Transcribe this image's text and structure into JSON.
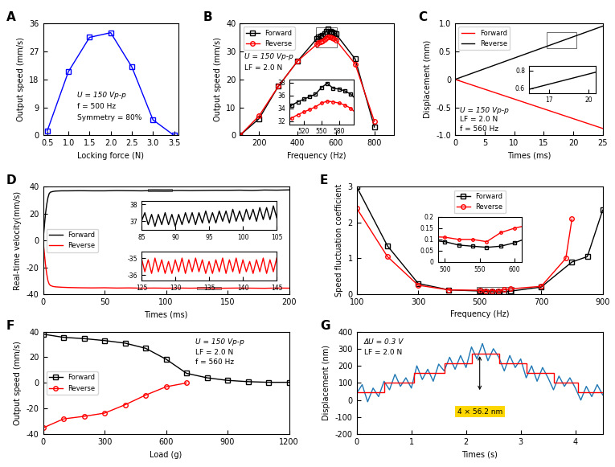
{
  "chart_data": [
    {
      "type": "line",
      "title": "A",
      "x_label": "Locking force (N)",
      "y_label": "Output speed (mm/s)",
      "xlim": [
        0.4,
        3.6
      ],
      "ylim": [
        0,
        36
      ],
      "xticks": [
        0.5,
        {
          "value": 1,
          "label": "1.0"
        },
        1.5,
        {
          "value": 2,
          "label": "2.0"
        },
        2.5,
        {
          "value": 3,
          "label": "3.0"
        },
        3.5
      ],
      "yticks": [
        0,
        9,
        18,
        27,
        36
      ],
      "annotations": [
        "U = 150 Vp-p",
        "f = 500 Hz",
        "Symmetry = 80%"
      ],
      "series": [
        {
          "color": "#0000ff",
          "marker": "square",
          "line_style": "solid",
          "x": [
            0.5,
            1.0,
            1.5,
            2.0,
            2.5,
            3.0,
            3.5
          ],
          "values": [
            1.5,
            20.5,
            31.5,
            33,
            22,
            5,
            0
          ]
        }
      ]
    },
    {
      "type": "line",
      "title": "B",
      "x_label": "Frequency (Hz)",
      "y_label": "Output speed (mm/s)",
      "xlim": [
        100,
        900
      ],
      "ylim": [
        0,
        40
      ],
      "xticks": [
        200,
        400,
        600,
        800
      ],
      "yticks": [
        0,
        10,
        20,
        30,
        40
      ],
      "legend": "upper left",
      "annotations": [
        "U = 150 Vp-p",
        "LF = 2.0 N"
      ],
      "series": [
        {
          "name": "Forward",
          "color": "#000000",
          "marker": "square",
          "line_style": "solid",
          "x": [
            100,
            200,
            300,
            400,
            500,
            510,
            520,
            530,
            540,
            550,
            560,
            570,
            580,
            590,
            600,
            700,
            800
          ],
          "values": [
            0,
            6,
            17.5,
            26.5,
            34.5,
            35,
            35.4,
            35.8,
            36.2,
            37.2,
            37.9,
            37.1,
            37,
            36.7,
            36.2,
            27.3,
            3
          ]
        },
        {
          "name": "Reverse",
          "color": "#ff0000",
          "marker": "circle",
          "line_style": "solid",
          "x": [
            100,
            200,
            300,
            400,
            500,
            510,
            520,
            530,
            540,
            550,
            560,
            570,
            580,
            590,
            600,
            700,
            800
          ],
          "values": [
            0,
            7,
            17.5,
            26.5,
            32.5,
            33,
            33.4,
            33.8,
            34.2,
            34.8,
            35.1,
            35,
            34.8,
            34.5,
            34,
            25.5,
            5
          ]
        }
      ],
      "insets": [
        {
          "xlim": [
            495,
            605
          ],
          "ylim": [
            31.5,
            38.5
          ],
          "xticks": [
            520,
            550,
            580
          ],
          "yticks": [
            32,
            34,
            36,
            38
          ]
        }
      ]
    },
    {
      "type": "line",
      "title": "C",
      "x_label": "Times (ms)",
      "y_label": "Displacement (mm)",
      "xlim": [
        0,
        25
      ],
      "ylim": [
        -1,
        1
      ],
      "xticks": [
        0,
        5,
        10,
        15,
        20,
        25
      ],
      "yticks": [
        {
          "value": -1,
          "label": "-1.0"
        },
        -0.5,
        0,
        0.5,
        {
          "value": 1,
          "label": "1.0"
        }
      ],
      "legend": "upper left",
      "annotations": [
        "U = 150 Vp-p",
        "LF = 2.0 N",
        "f = 560 Hz"
      ],
      "series": [
        {
          "name": "Forward",
          "color": "#ff0000",
          "marker": "none",
          "line_style": "solid",
          "x": [
            0,
            5,
            10,
            15,
            20,
            25
          ],
          "values": [
            0,
            -0.175,
            -0.35,
            -0.525,
            -0.7,
            -0.875
          ]
        },
        {
          "name": "Reverse",
          "color": "#000000",
          "marker": "none",
          "line_style": "solid",
          "x": [
            0,
            5,
            10,
            15,
            20,
            25
          ],
          "values": [
            0,
            0.19,
            0.38,
            0.57,
            0.76,
            0.95
          ]
        }
      ],
      "insets": [
        {
          "xlim": [
            15.5,
            20.5
          ],
          "ylim": [
            0.55,
            0.85
          ],
          "xticks": [
            17,
            20
          ],
          "yticks": [
            0.6,
            0.8
          ]
        }
      ]
    },
    {
      "type": "line",
      "title": "D",
      "x_label": "Times (ms)",
      "y_label": "Real-time velocity(mm/s)",
      "xlim": [
        0,
        200
      ],
      "ylim": [
        -40,
        40
      ],
      "xticks": [
        0,
        50,
        100,
        150,
        200
      ],
      "yticks": [
        -40,
        -20,
        0,
        20,
        40
      ],
      "legend": "center left",
      "series": [
        {
          "name": "Forward",
          "color": "#000000",
          "marker": "none",
          "line_style": "solid",
          "x": [
            0,
            1,
            2,
            3,
            4,
            5,
            6,
            8,
            10,
            15,
            20,
            30,
            40,
            50,
            60,
            70,
            80,
            90,
            100,
            110,
            120,
            130,
            140,
            150,
            160,
            170,
            180,
            190,
            200
          ],
          "values": [
            0,
            10,
            20,
            27,
            32,
            35,
            36,
            36.5,
            36.8,
            37,
            37,
            37.1,
            37,
            37,
            37.2,
            37.1,
            37,
            37.2,
            37.1,
            37.3,
            37.2,
            37.3,
            37.4,
            37.4,
            37.5,
            37.3,
            37.6,
            37.5,
            37.7
          ]
        },
        {
          "name": "Reverse",
          "color": "#ff0000",
          "marker": "none",
          "line_style": "solid",
          "x": [
            0,
            1,
            2,
            3,
            4,
            5,
            6,
            8,
            10,
            15,
            20,
            30,
            40,
            50,
            60,
            70,
            80,
            90,
            100,
            110,
            120,
            130,
            140,
            150,
            160,
            170,
            180,
            190,
            200
          ],
          "values": [
            0,
            -9,
            -18,
            -25,
            -30,
            -32.5,
            -33.5,
            -34.2,
            -34.5,
            -34.8,
            -35,
            -35.2,
            -35.3,
            -35.2,
            -35.4,
            -35.3,
            -35.5,
            -35.4,
            -35.5,
            -35.4,
            -35.5,
            -35.4,
            -35.6,
            -35.5,
            -35.4,
            -35.5,
            -35.6,
            -35.4,
            -35.5
          ]
        }
      ],
      "insets": [
        {
          "xlim": [
            85,
            105
          ],
          "ylim": [
            36.5,
            38.2
          ],
          "xticks": [
            85,
            90,
            95,
            100,
            105
          ],
          "yticks": [
            37,
            38
          ],
          "series": [
            {
              "color": "#000000",
              "marker": "none",
              "line_style": "solid",
              "x": [
                85,
                85.5,
                86,
                86.5,
                87,
                87.5,
                88,
                88.5,
                89,
                89.5,
                90,
                90.5,
                91,
                91.5,
                92,
                92.5,
                93,
                93.5,
                94,
                94.5,
                95,
                95.5,
                96,
                96.5,
                97,
                97.5,
                98,
                98.5,
                99,
                99.5,
                100,
                100.5,
                101,
                101.5,
                102,
                102.5,
                103,
                103.5,
                104,
                104.5,
                105
              ],
              "values": [
                37.0,
                37.5,
                36.8,
                37.4,
                36.7,
                37.4,
                36.8,
                37.5,
                36.8,
                37.4,
                36.7,
                37.4,
                36.8,
                37.5,
                36.9,
                37.5,
                36.8,
                37.5,
                36.9,
                37.6,
                36.9,
                37.5,
                36.9,
                37.6,
                37.0,
                37.6,
                36.9,
                37.7,
                37.0,
                37.6,
                37.0,
                37.7,
                37.1,
                37.7,
                37.0,
                37.8,
                37.1,
                37.8,
                37.1,
                37.9,
                37.2
              ]
            }
          ]
        },
        {
          "xlim": [
            125,
            145
          ],
          "ylim": [
            -36.3,
            -34.6
          ],
          "xticks": [
            125,
            130,
            135,
            140,
            145
          ],
          "yticks": [
            -36,
            -35
          ],
          "series": [
            {
              "color": "#ff0000",
              "marker": "none",
              "line_style": "solid",
              "x": [
                125,
                125.5,
                126,
                126.5,
                127,
                127.5,
                128,
                128.5,
                129,
                129.5,
                130,
                130.5,
                131,
                131.5,
                132,
                132.5,
                133,
                133.5,
                134,
                134.5,
                135,
                135.5,
                136,
                136.5,
                137,
                137.5,
                138,
                138.5,
                139,
                139.5,
                140,
                140.5,
                141,
                141.5,
                142,
                142.5,
                143,
                143.5,
                144,
                144.5,
                145
              ],
              "values": [
                -35.0,
                -35.8,
                -35.1,
                -35.9,
                -35.0,
                -35.8,
                -35.1,
                -35.9,
                -35.2,
                -35.9,
                -35.1,
                -35.8,
                -35.0,
                -35.9,
                -35.1,
                -35.8,
                -35.0,
                -35.8,
                -35.1,
                -35.9,
                -35.2,
                -35.9,
                -35.1,
                -35.8,
                -35.0,
                -35.9,
                -35.1,
                -35.8,
                -35.0,
                -35.9,
                -35.1,
                -35.8,
                -35.2,
                -35.9,
                -35.1,
                -35.8,
                -35.0,
                -35.9,
                -35.1,
                -35.8,
                -35.0
              ]
            }
          ]
        }
      ]
    },
    {
      "type": "line",
      "title": "E",
      "x_label": "Frequency (Hz)",
      "y_label": "Speed fluctuation coefficient",
      "xlim": [
        100,
        900
      ],
      "ylim": [
        0,
        3
      ],
      "xticks": [
        100,
        300,
        500,
        700,
        900
      ],
      "yticks": [
        0,
        1,
        2,
        3
      ],
      "legend": "upper center",
      "series": [
        {
          "name": "Forward",
          "color": "#000000",
          "marker": "square",
          "line_style": "solid",
          "x": [
            100,
            200,
            300,
            400,
            500,
            520,
            540,
            560,
            580,
            600,
            700,
            800,
            850,
            900
          ],
          "values": [
            3.0,
            1.35,
            0.3,
            0.12,
            0.09,
            0.075,
            0.07,
            0.065,
            0.07,
            0.085,
            0.2,
            0.9,
            1.05,
            2.35
          ]
        },
        {
          "name": "Reverse",
          "color": "#ff0000",
          "marker": "circle",
          "line_style": "solid",
          "x": [
            100,
            200,
            300,
            400,
            500,
            520,
            540,
            560,
            580,
            600,
            700,
            780,
            800
          ],
          "values": [
            2.4,
            1.05,
            0.25,
            0.12,
            0.11,
            0.1,
            0.1,
            0.09,
            0.13,
            0.15,
            0.22,
            1.0,
            2.1
          ]
        }
      ],
      "insets": [
        {
          "xlim": [
            490,
            610
          ],
          "ylim": [
            0,
            0.2
          ],
          "xticks": [
            500,
            550,
            600
          ],
          "yticks": [
            0,
            0.05,
            0.1,
            0.15,
            0.2
          ]
        }
      ]
    },
    {
      "type": "line",
      "title": "F",
      "x_label": "Load (g)",
      "y_label": "Output speed (mm/s)",
      "xlim": [
        0,
        1200
      ],
      "ylim": [
        -40,
        40
      ],
      "xticks": [
        0,
        300,
        600,
        900,
        1200
      ],
      "yticks": [
        -40,
        -20,
        0,
        20,
        40
      ],
      "legend": "center left",
      "annotations": [
        "U = 150 Vp-p",
        "LF = 2.0 N",
        "f = 560 Hz"
      ],
      "series": [
        {
          "name": "Forward",
          "color": "#000000",
          "marker": "square",
          "line_style": "solid",
          "x": [
            0,
            100,
            200,
            300,
            400,
            500,
            600,
            700,
            800,
            900,
            1000,
            1100,
            1200
          ],
          "values": [
            38,
            35.5,
            34.5,
            33,
            31,
            27,
            18.5,
            7.5,
            4,
            2,
            1,
            0.5,
            0.5
          ]
        },
        {
          "name": "Reverse",
          "color": "#ff0000",
          "marker": "circle",
          "line_style": "solid",
          "x": [
            0,
            100,
            200,
            300,
            400,
            500,
            600,
            700
          ],
          "values": [
            -35,
            -28,
            -26,
            -23.5,
            -17,
            -9.5,
            -3,
            0
          ]
        }
      ]
    },
    {
      "type": "line",
      "title": "G",
      "x_label": "Times (s)",
      "y_label": "Displacement (nm)",
      "xlim": [
        0,
        4.5
      ],
      "ylim": [
        -200,
        400
      ],
      "xticks": [
        0,
        1,
        2,
        3,
        4
      ],
      "yticks": [
        -200,
        -100,
        0,
        100,
        200,
        300,
        400
      ],
      "annotations": [
        "ΔU = 0.3 V",
        "LF = 2.0 N",
        "4 × 56.2 nm"
      ],
      "series": [
        {
          "color": "#1f77b4",
          "marker": "none",
          "line_style": "solid",
          "x": [
            0,
            0.1,
            0.2,
            0.3,
            0.4,
            0.5,
            0.6,
            0.7,
            0.8,
            0.9,
            1.0,
            1.1,
            1.2,
            1.3,
            1.4,
            1.5,
            1.6,
            1.7,
            1.8,
            1.9,
            2.0,
            2.1,
            2.2,
            2.3,
            2.4,
            2.5,
            2.6,
            2.7,
            2.8,
            2.9,
            3.0,
            3.1,
            3.2,
            3.3,
            3.4,
            3.5,
            3.6,
            3.7,
            3.8,
            3.9,
            4.0,
            4.1,
            4.2,
            4.3,
            4.4,
            4.5
          ],
          "values": [
            40,
            90,
            -10,
            70,
            20,
            110,
            60,
            150,
            80,
            130,
            70,
            200,
            120,
            180,
            110,
            210,
            170,
            250,
            180,
            260,
            190,
            310,
            240,
            330,
            230,
            300,
            250,
            170,
            260,
            190,
            240,
            130,
            200,
            110,
            190,
            130,
            60,
            140,
            80,
            130,
            70,
            0,
            80,
            20,
            90,
            30
          ]
        },
        {
          "color": "#ff0000",
          "marker": "none",
          "line_style": "steps",
          "x": [
            0,
            0.5,
            1.05,
            1.6,
            2.1,
            2.6,
            3.1,
            3.6,
            4.05,
            4.5
          ],
          "values": [
            45,
            101,
            158,
            214,
            270,
            214,
            158,
            101,
            45,
            45
          ]
        }
      ]
    }
  ]
}
